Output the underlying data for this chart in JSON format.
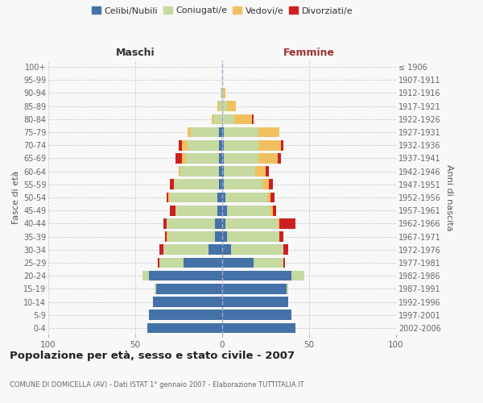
{
  "age_groups": [
    "0-4",
    "5-9",
    "10-14",
    "15-19",
    "20-24",
    "25-29",
    "30-34",
    "35-39",
    "40-44",
    "45-49",
    "50-54",
    "55-59",
    "60-64",
    "65-69",
    "70-74",
    "75-79",
    "80-84",
    "85-89",
    "90-94",
    "95-99",
    "100+"
  ],
  "birth_years": [
    "2002-2006",
    "1997-2001",
    "1992-1996",
    "1987-1991",
    "1982-1986",
    "1977-1981",
    "1972-1976",
    "1967-1971",
    "1962-1966",
    "1957-1961",
    "1952-1956",
    "1947-1951",
    "1942-1946",
    "1937-1941",
    "1932-1936",
    "1927-1931",
    "1922-1926",
    "1917-1921",
    "1912-1916",
    "1907-1911",
    "≤ 1906"
  ],
  "male_celibi": [
    43,
    42,
    40,
    38,
    42,
    22,
    8,
    4,
    4,
    3,
    3,
    2,
    2,
    2,
    2,
    2,
    0,
    0,
    0,
    0,
    0
  ],
  "male_coniugati": [
    0,
    0,
    0,
    1,
    4,
    14,
    26,
    27,
    28,
    24,
    27,
    26,
    22,
    19,
    18,
    16,
    5,
    2,
    1,
    0,
    0
  ],
  "male_vedovi": [
    0,
    0,
    0,
    0,
    0,
    0,
    0,
    1,
    0,
    0,
    1,
    0,
    1,
    2,
    3,
    2,
    1,
    1,
    0,
    0,
    0
  ],
  "male_divorziati": [
    0,
    0,
    0,
    0,
    0,
    1,
    2,
    1,
    2,
    3,
    1,
    2,
    0,
    4,
    2,
    0,
    0,
    0,
    0,
    0,
    0
  ],
  "female_nubili": [
    42,
    40,
    38,
    37,
    40,
    18,
    5,
    3,
    2,
    3,
    2,
    1,
    1,
    1,
    1,
    1,
    0,
    0,
    0,
    0,
    0
  ],
  "female_coniugate": [
    0,
    0,
    0,
    1,
    7,
    17,
    30,
    30,
    30,
    25,
    24,
    22,
    18,
    20,
    20,
    20,
    7,
    3,
    1,
    0,
    0
  ],
  "female_vedove": [
    0,
    0,
    0,
    0,
    0,
    0,
    0,
    0,
    1,
    1,
    2,
    4,
    6,
    11,
    13,
    12,
    10,
    5,
    1,
    0,
    0
  ],
  "female_divorziate": [
    0,
    0,
    0,
    0,
    0,
    1,
    3,
    2,
    9,
    2,
    2,
    2,
    2,
    2,
    1,
    0,
    1,
    0,
    0,
    0,
    0
  ],
  "color_celibi": "#4472a8",
  "color_coniugati": "#c5d9a0",
  "color_vedovi": "#f0c060",
  "color_divorziati": "#cc2020",
  "bg_color": "#f8f8f8",
  "xlim": 100,
  "title": "Popolazione per età, sesso e stato civile - 2007",
  "subtitle": "COMUNE DI DOMICELLA (AV) - Dati ISTAT 1° gennaio 2007 - Elaborazione TUTTITALIA.IT",
  "ylabel_left": "Fasce di età",
  "ylabel_right": "Anni di nascita",
  "label_maschi": "Maschi",
  "label_femmine": "Femmine",
  "legend_labels": [
    "Celibi/Nubili",
    "Coniugati/e",
    "Vedovi/e",
    "Divorziati/e"
  ]
}
